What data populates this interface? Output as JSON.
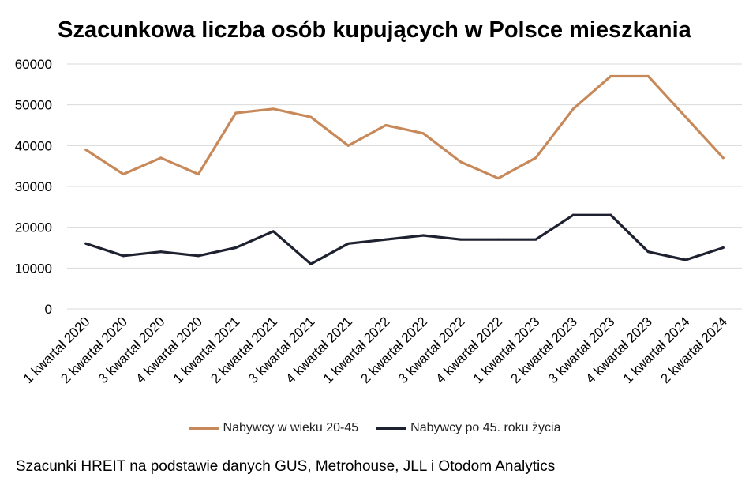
{
  "chart_data": {
    "type": "line",
    "title": "Szacunkowa liczba osób kupujących w Polsce mieszkania",
    "categories": [
      "1 kwartał 2020",
      "2 kwartał 2020",
      "3 kwartał 2020",
      "4 kwartał 2020",
      "1 kwartał 2021",
      "2 kwartał 2021",
      "3 kwartał 2021",
      "4 kwartał 2021",
      "1 kwartał 2022",
      "2 kwartał 2022",
      "3 kwartał 2022",
      "4 kwartał 2022",
      "1 kwartał 2023",
      "2 kwartał 2023",
      "3 kwartał 2023",
      "4 kwartał 2023",
      "1 kwartał 2024",
      "2 kwartał 2024"
    ],
    "series": [
      {
        "name": "Nabywcy w wieku 20-45",
        "color": "#C8895A",
        "values": [
          39000,
          33000,
          37000,
          33000,
          48000,
          49000,
          47000,
          40000,
          45000,
          43000,
          36000,
          32000,
          37000,
          49000,
          57000,
          57000,
          47000,
          37000
        ]
      },
      {
        "name": "Nabywcy po 45. roku życia",
        "color": "#1E2230",
        "values": [
          16000,
          13000,
          14000,
          13000,
          15000,
          19000,
          11000,
          16000,
          17000,
          18000,
          17000,
          17000,
          17000,
          23000,
          23000,
          14000,
          12000,
          15000
        ]
      }
    ],
    "ylim": [
      0,
      60000
    ],
    "yticks": [
      0,
      10000,
      20000,
      30000,
      40000,
      50000,
      60000
    ],
    "xlabel": "",
    "ylabel": "",
    "grid": true,
    "legend_position": "bottom"
  },
  "source": "Szacunki HREIT na podstawie danych GUS, Metrohouse, JLL i Otodom Analytics"
}
